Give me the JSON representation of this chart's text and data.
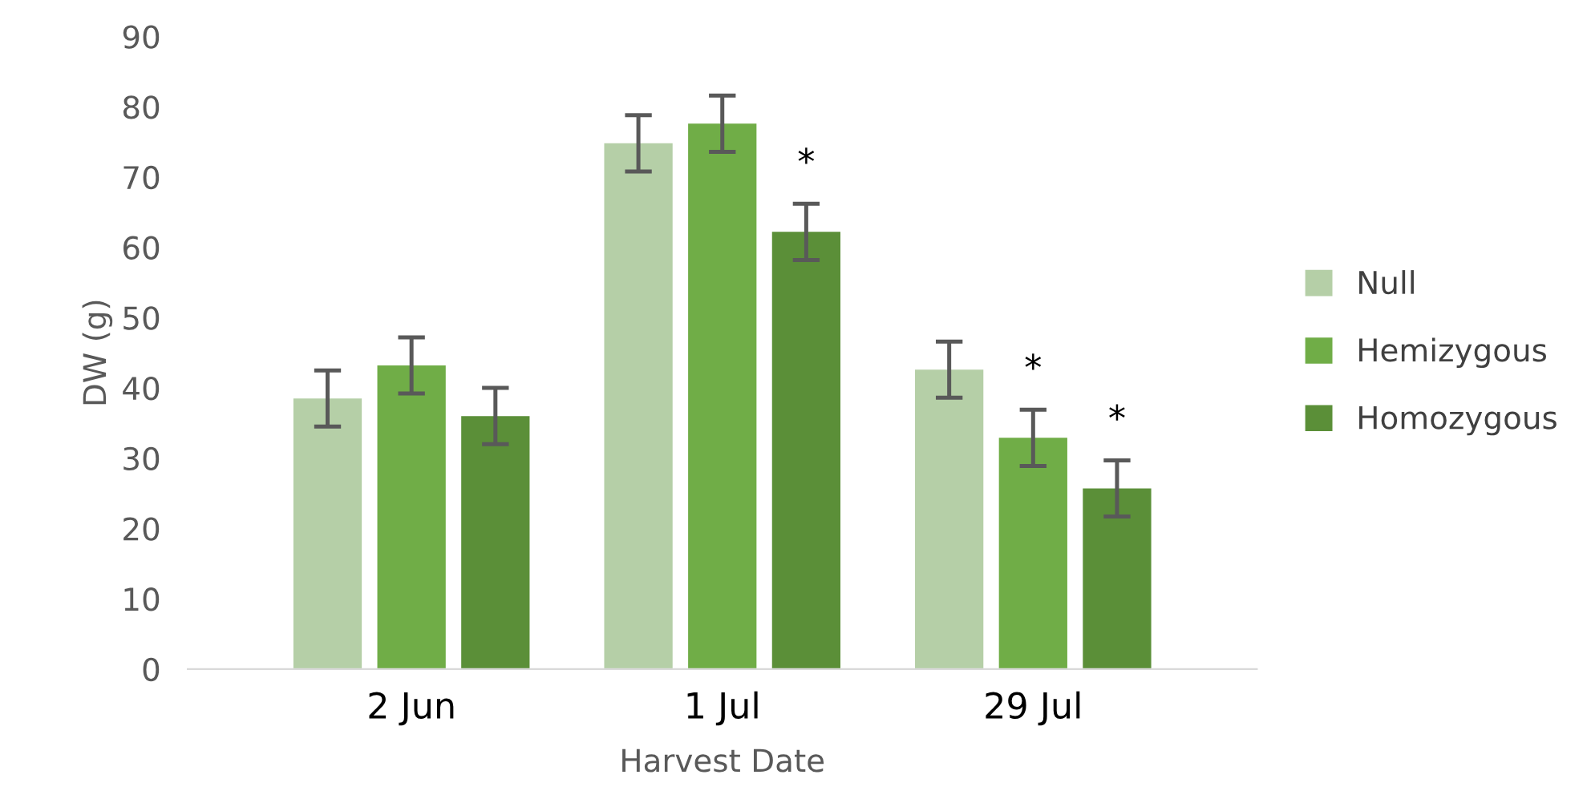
{
  "chart_data": {
    "type": "bar",
    "xlabel": "Harvest Date",
    "ylabel": "DW (g)",
    "categories": [
      "2 Jun",
      "1 Jul",
      "29 Jul"
    ],
    "series": [
      {
        "name": "Null",
        "color": "#b5cfa7",
        "values": [
          38.5,
          74.8,
          42.6
        ],
        "errors": [
          4,
          4,
          4
        ]
      },
      {
        "name": "Hemizygous",
        "color": "#70ad47",
        "values": [
          43.2,
          77.6,
          32.9
        ],
        "errors": [
          4,
          4,
          4
        ],
        "value_labels": [
          null,
          null,
          "*"
        ]
      },
      {
        "name": "Homozygous",
        "color": "#5b8f38",
        "values": [
          36.0,
          62.2,
          25.7
        ],
        "errors": [
          4,
          4,
          4
        ],
        "value_labels": [
          null,
          "*",
          "*"
        ]
      }
    ],
    "ylim": [
      0,
      90
    ],
    "yticks": [
      0,
      10,
      20,
      30,
      40,
      50,
      60,
      70,
      80,
      90
    ],
    "grid": false,
    "legend": "right"
  }
}
